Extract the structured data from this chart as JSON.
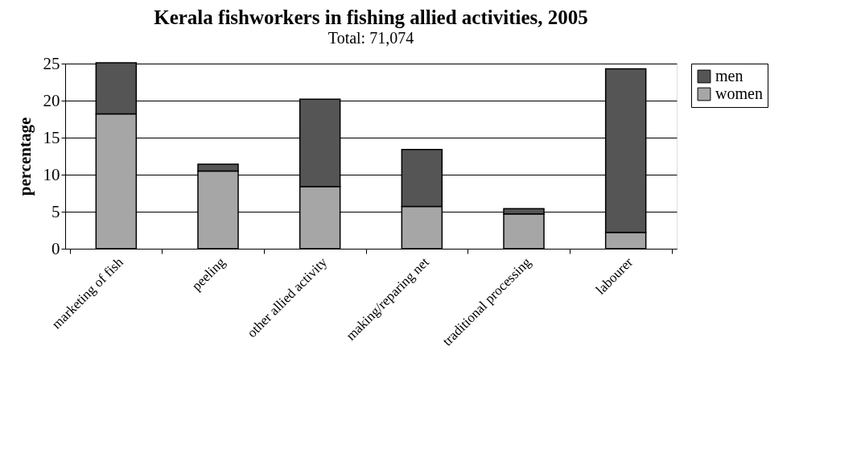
{
  "chart_data": {
    "type": "bar",
    "title": "Kerala fishworkers in fishing allied activities, 2005",
    "subtitle": "Total: 71,074",
    "ylabel": "percentage",
    "categories": [
      "marketing of fish",
      "peeling",
      "other allied activity",
      "making/reparing net",
      "traditional processing",
      "labourer"
    ],
    "stacked": true,
    "series": [
      {
        "name": "women",
        "color": "#a6a6a6",
        "values": [
          18.2,
          10.5,
          8.4,
          5.7,
          4.7,
          2.2
        ]
      },
      {
        "name": "men",
        "color": "#555555",
        "values": [
          6.9,
          0.9,
          11.8,
          7.7,
          0.7,
          22.1
        ]
      }
    ],
    "ylim": [
      0,
      25
    ],
    "yticks": [
      0,
      5,
      10,
      15,
      20,
      25
    ],
    "grid": "y",
    "legend": "right"
  }
}
